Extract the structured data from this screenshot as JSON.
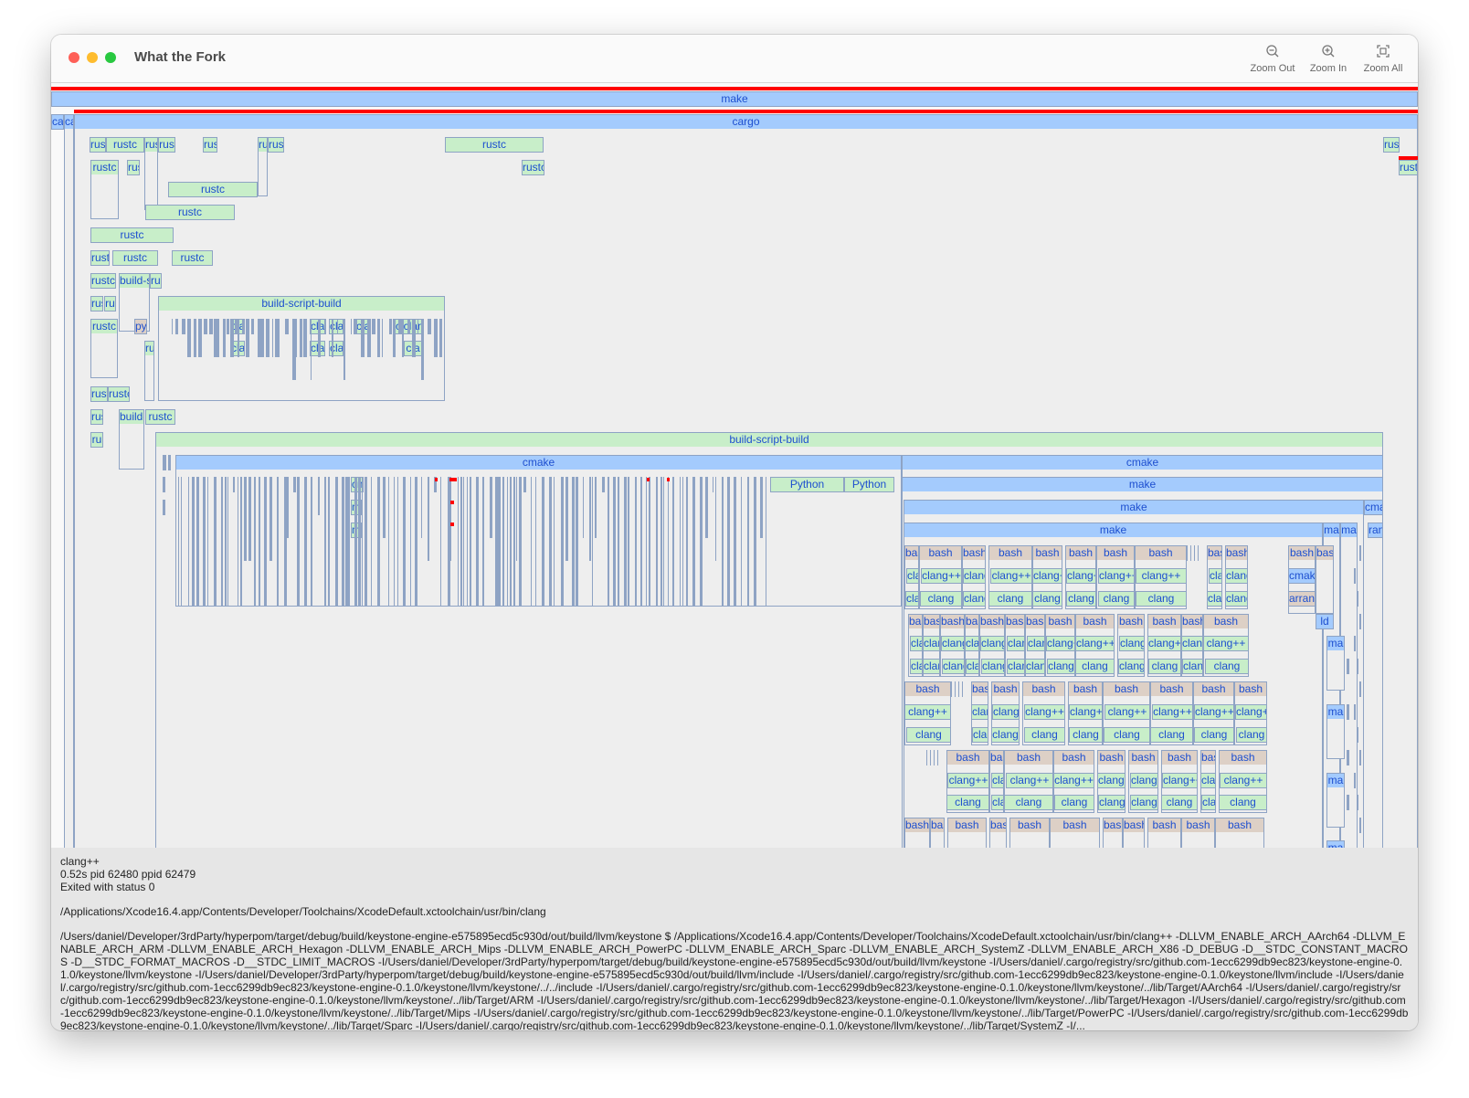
{
  "window": {
    "title": "What the Fork"
  },
  "toolbar": {
    "zoom_out": "Zoom Out",
    "zoom_in": "Zoom In",
    "zoom_all": "Zoom All"
  },
  "colors": {
    "process": "#c8eec9",
    "build_tool": "#a4cbfd",
    "shell": "#ddd0c6",
    "failed": "#ff0000",
    "label_text": "#1d4fd0"
  },
  "flame": {
    "labels": [
      "make",
      "ca",
      "ca",
      "cargo",
      "rus",
      "rustc",
      "rus",
      "rus",
      "rus",
      "ru",
      "rus",
      "rustc",
      "rus",
      "rustc",
      "rus",
      "rustc",
      "rust",
      "rustc",
      "rustc",
      "rustc",
      "rust",
      "rustc",
      "rustc",
      "rustc",
      "build-s",
      "rus",
      "rus",
      "ru",
      "build-script-build",
      "rustc",
      "pyt",
      "ru",
      "rust",
      "rustc",
      "rus",
      "build-",
      "rustc",
      "ru",
      "build-script-build",
      "cmake",
      "cmake",
      "cm",
      "Python",
      "Python",
      "make",
      "m",
      "make",
      "cma",
      "m",
      "make",
      "ma",
      "ma",
      "ran",
      "cla",
      "cla",
      "cla",
      "cla",
      "clclan",
      "cla",
      "cla",
      "cla",
      "cla"
    ],
    "names": {
      "bash": "bash",
      "clangxx": "clang++",
      "clang": "clang",
      "make": "ma",
      "cmake": "cmake",
      "ld": "ld",
      "arran": "arran"
    }
  },
  "info": {
    "name": "clang++",
    "timing": "0.52s pid 62480 ppid 62479",
    "status": "Exited with status 0",
    "path": "/Applications/Xcode16.4.app/Contents/Developer/Toolchains/XcodeDefault.xctoolchain/usr/bin/clang",
    "command": "/Users/daniel/Developer/3rdParty/hyperpom/target/debug/build/keystone-engine-e575895ecd5c930d/out/build/llvm/keystone $  /Applications/Xcode16.4.app/Contents/Developer/Toolchains/XcodeDefault.xctoolchain/usr/bin/clang++ -DLLVM_ENABLE_ARCH_AArch64 -DLLVM_ENABLE_ARCH_ARM -DLLVM_ENABLE_ARCH_Hexagon -DLLVM_ENABLE_ARCH_Mips -DLLVM_ENABLE_ARCH_PowerPC -DLLVM_ENABLE_ARCH_Sparc -DLLVM_ENABLE_ARCH_SystemZ -DLLVM_ENABLE_ARCH_X86 -D_DEBUG -D__STDC_CONSTANT_MACROS -D__STDC_FORMAT_MACROS -D__STDC_LIMIT_MACROS -I/Users/daniel/Developer/3rdParty/hyperpom/target/debug/build/keystone-engine-e575895ecd5c930d/out/build/llvm/keystone -I/Users/daniel/.cargo/registry/src/github.com-1ecc6299db9ec823/keystone-engine-0.1.0/keystone/llvm/keystone -I/Users/daniel/Developer/3rdParty/hyperpom/target/debug/build/keystone-engine-e575895ecd5c930d/out/build/llvm/include -I/Users/daniel/.cargo/registry/src/github.com-1ecc6299db9ec823/keystone-engine-0.1.0/keystone/llvm/include -I/Users/daniel/.cargo/registry/src/github.com-1ecc6299db9ec823/keystone-engine-0.1.0/keystone/llvm/keystone/../../include -I/Users/daniel/.cargo/registry/src/github.com-1ecc6299db9ec823/keystone-engine-0.1.0/keystone/llvm/keystone/../lib/Target/AArch64 -I/Users/daniel/.cargo/registry/src/github.com-1ecc6299db9ec823/keystone-engine-0.1.0/keystone/llvm/keystone/../lib/Target/ARM -I/Users/daniel/.cargo/registry/src/github.com-1ecc6299db9ec823/keystone-engine-0.1.0/keystone/llvm/keystone/../lib/Target/Hexagon -I/Users/daniel/.cargo/registry/src/github.com-1ecc6299db9ec823/keystone-engine-0.1.0/keystone/llvm/keystone/../lib/Target/Mips -I/Users/daniel/.cargo/registry/src/github.com-1ecc6299db9ec823/keystone-engine-0.1.0/keystone/llvm/keystone/../lib/Target/PowerPC -I/Users/daniel/.cargo/registry/src/github.com-1ecc6299db9ec823/keystone-engine-0.1.0/keystone/llvm/keystone/../lib/Target/Sparc -I/Users/daniel/.cargo/registry/src/github.com-1ecc6299db9ec823/keystone-engine-0.1.0/keystone/llvm/keystone/../lib/Target/SystemZ -I/..."
  }
}
